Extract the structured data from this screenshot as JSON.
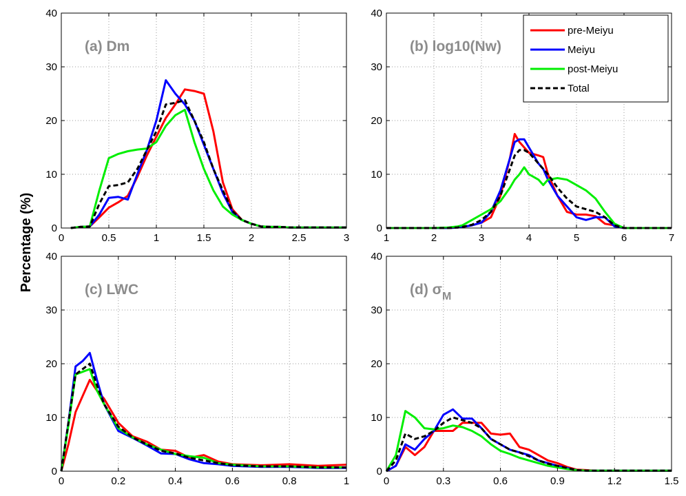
{
  "figure": {
    "ylabel": "Percentage (%)"
  },
  "legend": {
    "location": "top-right",
    "panel": 1,
    "entries": [
      {
        "label": "pre-Meiyu",
        "color": "#ff0000",
        "dashed": false
      },
      {
        "label": "Meiyu",
        "color": "#0000ff",
        "dashed": false
      },
      {
        "label": "post-Meiyu",
        "color": "#00ee00",
        "dashed": false
      },
      {
        "label": "Total",
        "color": "#000000",
        "dashed": true
      }
    ]
  },
  "chart_data": [
    {
      "type": "line",
      "title": "(a) Dm",
      "xlim": [
        0,
        3
      ],
      "ylim": [
        0,
        40
      ],
      "xticks": [
        "0",
        "0.5",
        "1",
        "1.5",
        "2",
        "2.5",
        "3"
      ],
      "yticks": [
        "0",
        "10",
        "20",
        "30",
        "40"
      ],
      "grid": true,
      "x": [
        0.1,
        0.2,
        0.3,
        0.4,
        0.5,
        0.6,
        0.7,
        0.8,
        0.9,
        1.0,
        1.1,
        1.2,
        1.3,
        1.4,
        1.5,
        1.6,
        1.7,
        1.8,
        1.9,
        2.0,
        2.1,
        2.2,
        2.3,
        2.4,
        2.5,
        2.6,
        2.7,
        2.8,
        2.9,
        3.0
      ],
      "series": [
        {
          "name": "pre-Meiyu",
          "values": [
            0,
            0.2,
            0.3,
            2,
            3.8,
            4.8,
            6,
            9.5,
            13.5,
            17,
            20.5,
            23,
            25.8,
            25.5,
            25,
            18,
            8.5,
            3.5,
            1.5,
            0.8,
            0.3,
            0.2,
            0.2,
            0.1,
            0.1,
            0.1,
            0.1,
            0.1,
            0.1,
            0.1
          ]
        },
        {
          "name": "Meiyu",
          "values": [
            0,
            0.2,
            0.3,
            2.5,
            5.6,
            5.8,
            5.3,
            10,
            14.5,
            20,
            27.5,
            25,
            23,
            20,
            15.5,
            11,
            6.5,
            3,
            1.5,
            0.8,
            0.3,
            0.2,
            0.2,
            0.1,
            0.1,
            0.1,
            0.1,
            0.1,
            0.1,
            0.1
          ]
        },
        {
          "name": "post-Meiyu",
          "values": [
            0,
            0.2,
            0.3,
            7,
            13,
            13.8,
            14.3,
            14.6,
            14.8,
            16,
            19,
            21,
            22,
            16,
            11,
            7,
            4,
            2.5,
            1.5,
            0.8,
            0.3,
            0.2,
            0.2,
            0.1,
            0.1,
            0.1,
            0.1,
            0.1,
            0.1,
            0.1
          ]
        },
        {
          "name": "Total",
          "values": [
            0,
            0.2,
            0.3,
            4.5,
            7.8,
            8,
            8.5,
            11,
            14.5,
            18,
            23,
            23.3,
            23.8,
            20,
            16,
            11,
            7,
            3.2,
            1.5,
            0.8,
            0.3,
            0.2,
            0.2,
            0.1,
            0.1,
            0.1,
            0.1,
            0.1,
            0.1,
            0.1
          ]
        }
      ]
    },
    {
      "type": "line",
      "title": "(b) log10(Nw)",
      "xlim": [
        1,
        7
      ],
      "ylim": [
        0,
        40
      ],
      "xticks": [
        "1",
        "2",
        "3",
        "4",
        "5",
        "6",
        "7"
      ],
      "yticks": [
        "0",
        "10",
        "20",
        "30",
        "40"
      ],
      "grid": true,
      "x": [
        1.0,
        1.5,
        2.0,
        2.3,
        2.5,
        2.6,
        2.8,
        3.0,
        3.2,
        3.4,
        3.6,
        3.7,
        3.8,
        3.9,
        4.0,
        4.2,
        4.3,
        4.4,
        4.6,
        4.8,
        5.0,
        5.2,
        5.4,
        5.6,
        5.8,
        6.0,
        6.5,
        7.0
      ],
      "series": [
        {
          "name": "pre-Meiyu",
          "values": [
            0,
            0,
            0,
            0,
            0.1,
            0.2,
            0.5,
            1,
            2,
            6,
            13,
            17.5,
            16,
            15,
            14,
            13.5,
            13.2,
            10,
            6,
            3,
            2.5,
            2.5,
            2.2,
            0.8,
            0.5,
            0,
            0,
            0
          ]
        },
        {
          "name": "Meiyu",
          "values": [
            0,
            0,
            0,
            0,
            0.1,
            0.2,
            0.5,
            1,
            3,
            7,
            13,
            16,
            16.5,
            16.5,
            15,
            12,
            11,
            9,
            6,
            4,
            2,
            1.5,
            2,
            2,
            0.3,
            0,
            0,
            0
          ]
        },
        {
          "name": "post-Meiyu",
          "values": [
            0,
            0,
            0,
            0.1,
            0.3,
            0.5,
            1.5,
            2.5,
            3.5,
            5,
            7.5,
            9,
            10,
            11.3,
            10,
            9,
            8,
            9,
            9.3,
            9,
            8,
            7,
            5.5,
            3,
            0.8,
            0,
            0,
            0
          ]
        },
        {
          "name": "Total",
          "values": [
            0,
            0,
            0,
            0,
            0.1,
            0.2,
            0.6,
            1.5,
            3,
            6,
            11,
            13.5,
            14.5,
            14.5,
            14,
            12,
            11,
            10,
            7.5,
            5.5,
            4,
            3.5,
            3,
            2,
            0.5,
            0,
            0,
            0
          ]
        }
      ]
    },
    {
      "type": "line",
      "title": "(c) LWC",
      "xlim": [
        0,
        1
      ],
      "ylim": [
        0,
        40
      ],
      "xticks": [
        "0",
        "0.2",
        "0.4",
        "0.6",
        "0.8",
        "1"
      ],
      "yticks": [
        "0",
        "10",
        "20",
        "30",
        "40"
      ],
      "grid": true,
      "x": [
        0,
        0.025,
        0.05,
        0.075,
        0.1,
        0.125,
        0.15,
        0.2,
        0.25,
        0.3,
        0.35,
        0.4,
        0.45,
        0.5,
        0.55,
        0.6,
        0.7,
        0.8,
        0.9,
        1.0
      ],
      "series": [
        {
          "name": "pre-Meiyu",
          "values": [
            0,
            5,
            11,
            14,
            17,
            15,
            13.5,
            9,
            6.5,
            5.5,
            4,
            3.8,
            2.5,
            3,
            1.8,
            1.3,
            1.1,
            1.3,
            1,
            1.2
          ]
        },
        {
          "name": "Meiyu",
          "values": [
            0,
            9,
            19.5,
            20.5,
            22,
            17,
            12.5,
            7.5,
            6.2,
            4.8,
            3.3,
            3.2,
            2.2,
            1.5,
            1.3,
            1,
            0.8,
            0.8,
            0.6,
            0.6
          ]
        },
        {
          "name": "post-Meiyu",
          "values": [
            0,
            8.5,
            18,
            18.5,
            19,
            15,
            12.5,
            8,
            6.3,
            5,
            4,
            3.2,
            2.8,
            2.5,
            1.5,
            1.2,
            0.9,
            0.9,
            0.7,
            0.7
          ]
        },
        {
          "name": "Total",
          "values": [
            0,
            9,
            18,
            19,
            20,
            16,
            12.5,
            8.3,
            6.3,
            5,
            3.8,
            3.3,
            2.5,
            2,
            1.5,
            1.1,
            0.9,
            0.9,
            0.7,
            0.7
          ]
        }
      ]
    },
    {
      "type": "line",
      "title": "(d) σ",
      "title_subscript": "M",
      "xlim": [
        0,
        1.5
      ],
      "ylim": [
        0,
        40
      ],
      "xticks": [
        "0",
        "0.3",
        "0.6",
        "0.9",
        "1.2",
        "1.5"
      ],
      "yticks": [
        "0",
        "10",
        "20",
        "30",
        "40"
      ],
      "grid": true,
      "x": [
        0,
        0.05,
        0.1,
        0.15,
        0.2,
        0.25,
        0.3,
        0.35,
        0.4,
        0.45,
        0.5,
        0.55,
        0.6,
        0.65,
        0.7,
        0.75,
        0.8,
        0.85,
        0.9,
        0.95,
        1.0,
        1.05,
        1.1,
        1.2,
        1.3,
        1.4,
        1.5
      ],
      "series": [
        {
          "name": "pre-Meiyu",
          "values": [
            0,
            1,
            4.5,
            3,
            4.5,
            7.5,
            7.5,
            7.5,
            9,
            9,
            9,
            7,
            6.8,
            7,
            4.5,
            4,
            3,
            2,
            1.5,
            0.8,
            0.3,
            0.2,
            0.1,
            0.1,
            0.1,
            0.1,
            0.1
          ]
        },
        {
          "name": "Meiyu",
          "values": [
            0,
            1,
            5,
            4,
            6,
            7.5,
            10.5,
            11.5,
            9.8,
            9.8,
            8,
            6,
            5,
            4,
            3.5,
            3,
            2,
            1.5,
            1,
            0.6,
            0.2,
            0.1,
            0.1,
            0.1,
            0.1,
            0.1,
            0.1
          ]
        },
        {
          "name": "post-Meiyu",
          "values": [
            0,
            3,
            11.2,
            10,
            8,
            7.8,
            8,
            8.5,
            8.2,
            7.5,
            6.5,
            5,
            3.8,
            3.2,
            2.5,
            2,
            1.5,
            1,
            0.7,
            0.4,
            0.2,
            0.1,
            0.1,
            0.1,
            0.1,
            0.1,
            0.1
          ]
        },
        {
          "name": "Total",
          "values": [
            0,
            2,
            7,
            6,
            6.5,
            7.5,
            9,
            10,
            9.5,
            9,
            8,
            6,
            5,
            4,
            3.5,
            2.8,
            2,
            1.4,
            1,
            0.6,
            0.2,
            0.1,
            0.1,
            0.1,
            0.1,
            0.1,
            0.1
          ]
        }
      ]
    }
  ]
}
